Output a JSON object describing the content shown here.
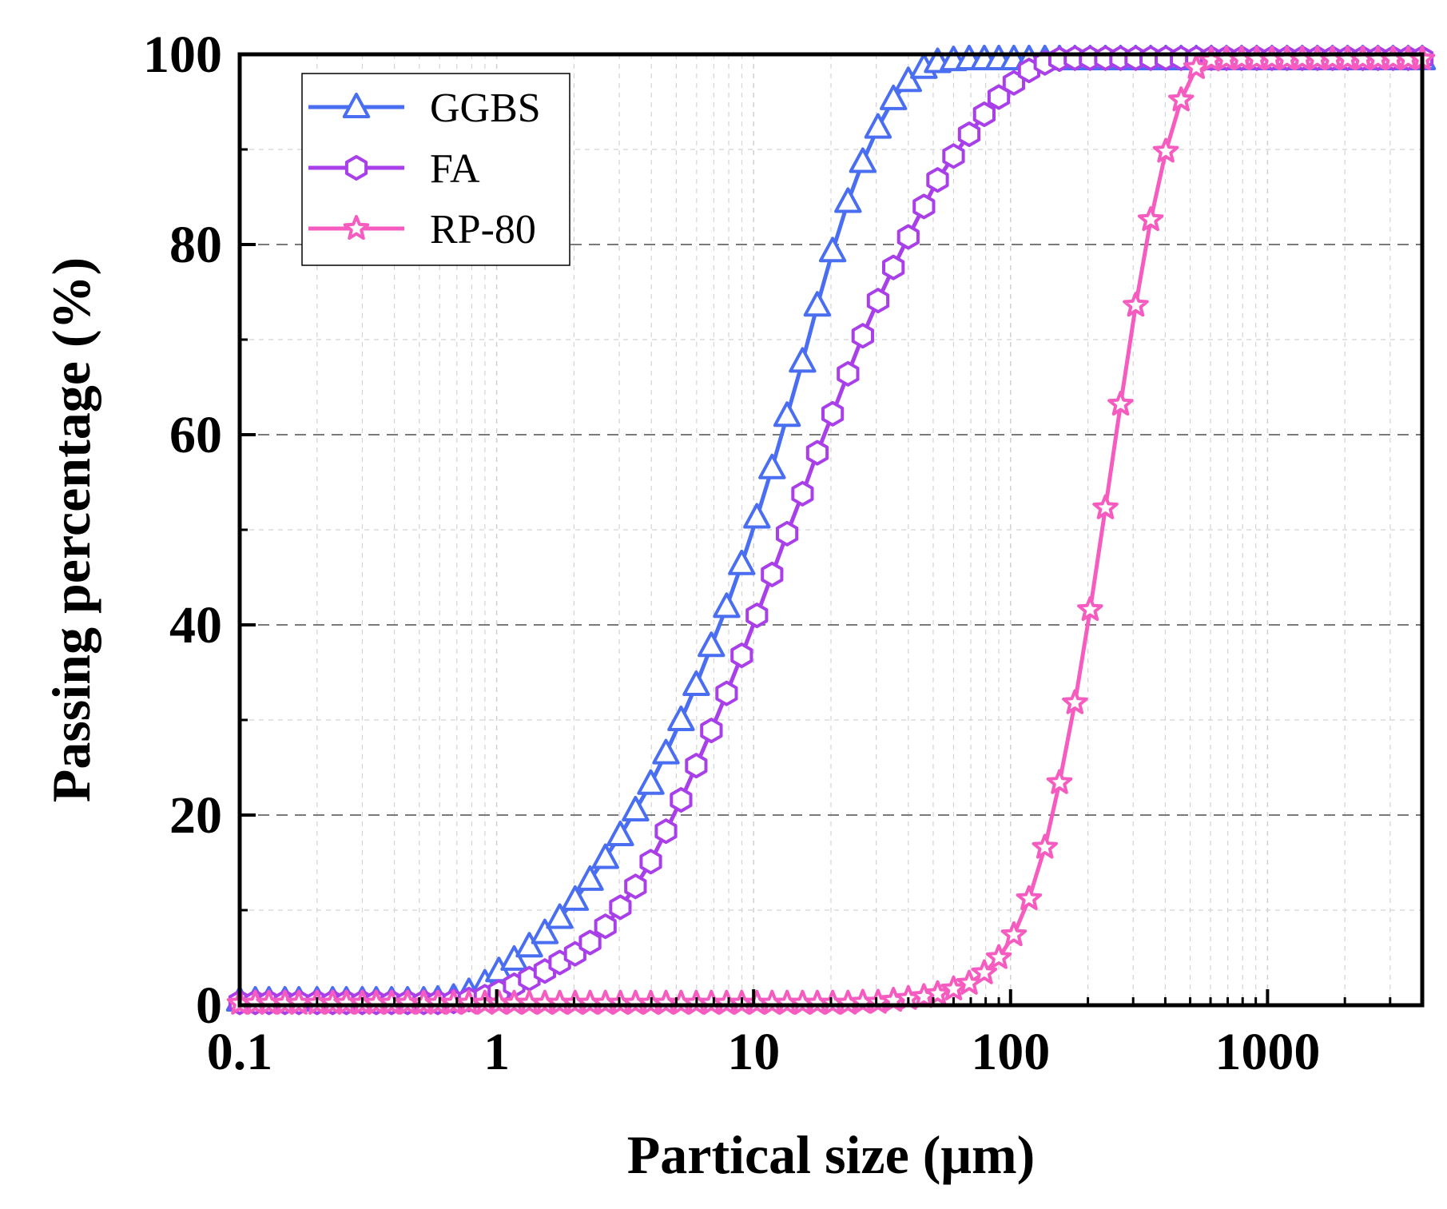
{
  "chart_data": {
    "type": "line",
    "title": "",
    "xlabel": "Partical size (μm)",
    "ylabel": "Passing percentage (%)",
    "xscale": "log",
    "xlim": [
      0.1,
      4000
    ],
    "ylim": [
      0,
      100
    ],
    "xticks": [
      0.1,
      1,
      10,
      100,
      1000
    ],
    "xtick_labels": [
      "0.1",
      "1",
      "10",
      "100",
      "1000"
    ],
    "yticks": [
      0,
      20,
      40,
      60,
      80,
      100
    ],
    "ytick_labels": [
      "0",
      "20",
      "40",
      "60",
      "80",
      "100"
    ],
    "grid": true,
    "legend_position": "top-left",
    "series": [
      {
        "name": "GGBS",
        "color": "#4a6ef2",
        "marker": "triangle",
        "x": [
          0.1,
          0.115,
          0.13,
          0.15,
          0.17,
          0.2,
          0.23,
          0.26,
          0.3,
          0.34,
          0.39,
          0.45,
          0.52,
          0.59,
          0.68,
          0.78,
          0.9,
          1.02,
          1.17,
          1.34,
          1.54,
          1.76,
          2.02,
          2.31,
          2.65,
          3.03,
          3.47,
          3.98,
          4.56,
          5.22,
          5.98,
          6.85,
          7.85,
          8.99,
          10.3,
          11.8,
          13.5,
          15.5,
          17.7,
          20.3,
          23.3,
          26.6,
          30.5,
          35,
          40,
          46,
          52,
          60,
          69,
          79,
          90,
          103,
          118,
          136,
          155,
          178,
          204,
          234,
          268,
          307,
          351,
          402,
          461,
          528,
          604,
          692,
          793,
          908,
          1040,
          1191,
          1365,
          1563,
          1790,
          2050,
          2348,
          2690,
          3081,
          3529,
          4000
        ],
        "y": [
          0.5,
          0.5,
          0.5,
          0.5,
          0.5,
          0.5,
          0.5,
          0.5,
          0.5,
          0.5,
          0.5,
          0.5,
          0.5,
          0.6,
          0.8,
          1.4,
          2.3,
          3.6,
          4.8,
          6.2,
          7.6,
          9.2,
          11.1,
          13.2,
          15.5,
          17.9,
          20.5,
          23.3,
          26.5,
          30,
          33.7,
          37.8,
          41.9,
          46.4,
          51.3,
          56.5,
          62,
          67.7,
          73.6,
          79.3,
          84.5,
          88.7,
          92.3,
          95.3,
          97.2,
          98.6,
          99.2,
          99.4,
          99.5,
          99.5,
          99.5,
          99.5,
          99.5,
          99.5,
          99.5,
          99.5,
          99.5,
          99.5,
          99.5,
          99.5,
          99.5,
          99.5,
          99.5,
          99.5,
          99.5,
          99.5,
          99.5,
          99.5,
          99.5,
          99.5,
          99.5,
          99.5,
          99.5,
          99.5,
          99.5,
          99.5,
          99.5,
          99.5,
          99.5
        ]
      },
      {
        "name": "FA",
        "color": "#a83fe9",
        "marker": "hexagon",
        "x": [
          0.1,
          0.115,
          0.13,
          0.15,
          0.17,
          0.2,
          0.23,
          0.26,
          0.3,
          0.34,
          0.39,
          0.45,
          0.52,
          0.59,
          0.68,
          0.78,
          0.9,
          1.02,
          1.17,
          1.34,
          1.54,
          1.76,
          2.02,
          2.31,
          2.65,
          3.03,
          3.47,
          3.98,
          4.56,
          5.22,
          5.98,
          6.85,
          7.85,
          8.99,
          10.3,
          11.8,
          13.5,
          15.5,
          17.7,
          20.3,
          23.3,
          26.6,
          30.5,
          35,
          40,
          46,
          52,
          60,
          69,
          79,
          90,
          103,
          118,
          136,
          155,
          178,
          204,
          234,
          268,
          307,
          351,
          402,
          461,
          528,
          604,
          692,
          793,
          908,
          1040,
          1191,
          1365,
          1563,
          1790,
          2050,
          2348,
          2690,
          3081,
          3529,
          4000
        ],
        "y": [
          0.3,
          0.3,
          0.3,
          0.3,
          0.3,
          0.3,
          0.3,
          0.3,
          0.3,
          0.3,
          0.3,
          0.3,
          0.3,
          0.3,
          0.4,
          0.6,
          0.9,
          1.4,
          2.1,
          2.8,
          3.6,
          4.5,
          5.4,
          6.6,
          8.3,
          10.3,
          12.5,
          15.1,
          18.3,
          21.6,
          25.2,
          28.9,
          32.8,
          36.8,
          41,
          45.3,
          49.6,
          53.8,
          58.1,
          62.2,
          66.4,
          70.4,
          74.1,
          77.6,
          80.8,
          84,
          86.8,
          89.3,
          91.6,
          93.7,
          95.5,
          97,
          98.3,
          99.1,
          99.5,
          99.6,
          99.6,
          99.6,
          99.6,
          99.6,
          99.6,
          99.6,
          99.6,
          99.6,
          99.6,
          99.6,
          99.6,
          99.6,
          99.6,
          99.6,
          99.6,
          99.6,
          99.6,
          99.6,
          99.6,
          99.6,
          99.6,
          99.6,
          99.6
        ]
      },
      {
        "name": "RP-80",
        "color": "#f65cbf",
        "marker": "star",
        "x": [
          0.1,
          0.115,
          0.13,
          0.15,
          0.17,
          0.2,
          0.23,
          0.26,
          0.3,
          0.34,
          0.39,
          0.45,
          0.52,
          0.59,
          0.68,
          0.78,
          0.9,
          1.02,
          1.17,
          1.34,
          1.54,
          1.76,
          2.02,
          2.31,
          2.65,
          3.03,
          3.47,
          3.98,
          4.56,
          5.22,
          5.98,
          6.85,
          7.85,
          8.99,
          10.3,
          11.8,
          13.5,
          15.5,
          17.7,
          20.3,
          23.3,
          26.6,
          30.5,
          35,
          40,
          46,
          52,
          60,
          69,
          79,
          90,
          103,
          118,
          136,
          155,
          178,
          204,
          234,
          268,
          307,
          351,
          402,
          461,
          528,
          604,
          692,
          793,
          908,
          1040,
          1191,
          1365,
          1563,
          1790,
          2050,
          2348,
          2690,
          3081,
          3529,
          4000
        ],
        "y": [
          0.2,
          0.2,
          0.2,
          0.2,
          0.2,
          0.2,
          0.2,
          0.2,
          0.2,
          0.2,
          0.2,
          0.2,
          0.2,
          0.2,
          0.2,
          0.2,
          0.2,
          0.2,
          0.2,
          0.2,
          0.2,
          0.2,
          0.2,
          0.2,
          0.2,
          0.2,
          0.2,
          0.2,
          0.2,
          0.2,
          0.2,
          0.2,
          0.2,
          0.2,
          0.2,
          0.2,
          0.2,
          0.2,
          0.2,
          0.2,
          0.2,
          0.3,
          0.3,
          0.5,
          0.7,
          0.9,
          1.2,
          1.7,
          2.3,
          3.4,
          5,
          7.4,
          11.2,
          16.6,
          23.4,
          31.8,
          41.6,
          52.3,
          63.2,
          73.6,
          82.6,
          89.8,
          95.2,
          98.6,
          99.4,
          99.5,
          99.5,
          99.5,
          99.5,
          99.5,
          99.5,
          99.5,
          99.5,
          99.5,
          99.5,
          99.5,
          99.5,
          99.5,
          99.5
        ]
      }
    ]
  }
}
